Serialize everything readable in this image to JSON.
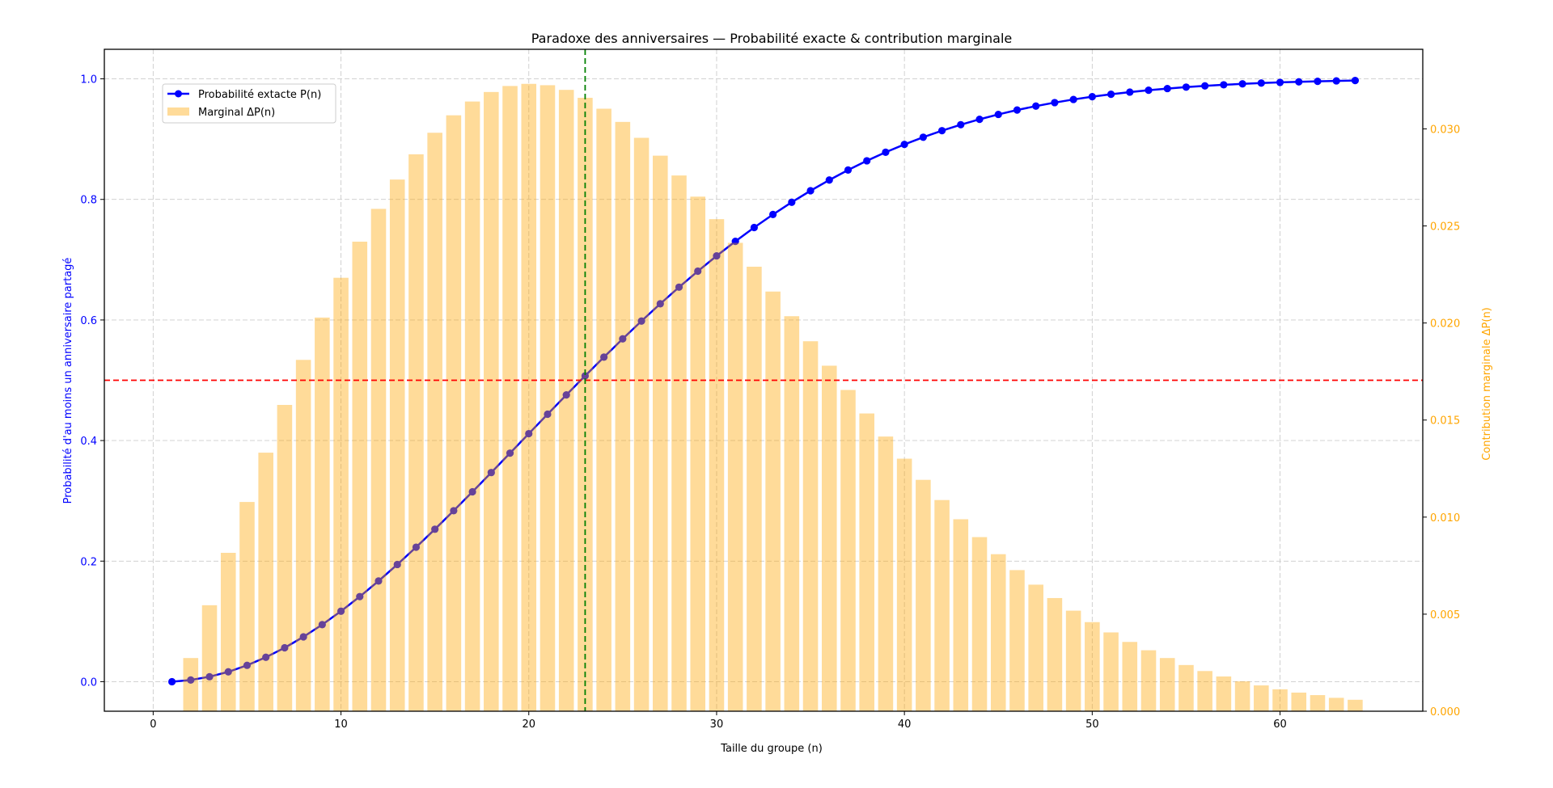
{
  "chart_data": {
    "type": "bar+line",
    "title": "Paradoxe des anniversaires — Probabilité exacte & contribution marginale",
    "xlabel": "Taille du groupe (n)",
    "ylabel": "Probabilité d'au moins un anniversaire partagé",
    "ylabel_right": "Contribution marginale ΔP(n)",
    "xlim": [
      -2.6,
      67.6
    ],
    "ylim": [
      -0.049,
      1.049
    ],
    "ylim_right": [
      0.0,
      0.0341
    ],
    "x_ticks": [
      0,
      10,
      20,
      30,
      40,
      50,
      60
    ],
    "y_ticks": [
      0.0,
      0.2,
      0.4,
      0.6,
      0.8,
      1.0
    ],
    "y_tick_labels": [
      "0.0",
      "0.2",
      "0.4",
      "0.6",
      "0.8",
      "1.0"
    ],
    "y_right_ticks": [
      0.0,
      0.005,
      0.01,
      0.015,
      0.02,
      0.025,
      0.03
    ],
    "y_right_tick_labels": [
      "0.000",
      "0.005",
      "0.010",
      "0.015",
      "0.020",
      "0.025",
      "0.030"
    ],
    "grid": true,
    "legend_position": "upper left",
    "colors": {
      "line": "#0000ff",
      "bars": "#ffa500",
      "bar_alpha": 0.4,
      "threshold_line": "#ff0000",
      "vertical_line": "#008000",
      "left_axis": "#0000ff",
      "right_axis": "#ffa500",
      "grid": "#cccccc"
    },
    "annotations": {
      "horizontal_line": {
        "y": 0.5,
        "style": "dashed",
        "color": "#ff0000"
      },
      "vertical_line": {
        "x": 23,
        "style": "dashed",
        "color": "#008000"
      }
    },
    "series": [
      {
        "name": "Probabilité extacte P(n)",
        "type": "line",
        "axis": "left",
        "x": [
          1,
          2,
          3,
          4,
          5,
          6,
          7,
          8,
          9,
          10,
          11,
          12,
          13,
          14,
          15,
          16,
          17,
          18,
          19,
          20,
          21,
          22,
          23,
          24,
          25,
          26,
          27,
          28,
          29,
          30,
          31,
          32,
          33,
          34,
          35,
          36,
          37,
          38,
          39,
          40,
          41,
          42,
          43,
          44,
          45,
          46,
          47,
          48,
          49,
          50,
          51,
          52,
          53,
          54,
          55,
          56,
          57,
          58,
          59,
          60,
          61,
          62,
          63,
          64
        ],
        "values": [
          0.0,
          0.00274,
          0.0082,
          0.01636,
          0.02714,
          0.04046,
          0.05624,
          0.07434,
          0.09462,
          0.11695,
          0.14114,
          0.16702,
          0.19441,
          0.2231,
          0.2529,
          0.2836,
          0.31501,
          0.34691,
          0.37912,
          0.41144,
          0.44369,
          0.4757,
          0.5073,
          0.53834,
          0.5687,
          0.59824,
          0.62686,
          0.65446,
          0.68097,
          0.70632,
          0.73045,
          0.75335,
          0.77497,
          0.79532,
          0.81438,
          0.83218,
          0.84873,
          0.86407,
          0.87822,
          0.89123,
          0.90315,
          0.91403,
          0.92392,
          0.93289,
          0.94098,
          0.94825,
          0.95477,
          0.9606,
          0.96578,
          0.97037,
          0.97443,
          0.978,
          0.98114,
          0.98388,
          0.98626,
          0.98833,
          0.99012,
          0.99166,
          0.99299,
          0.99412,
          0.99508,
          0.99591,
          0.9966,
          0.99719
        ]
      },
      {
        "name": "Marginal ΔP(n)",
        "type": "bar",
        "axis": "right",
        "x": [
          2,
          3,
          4,
          5,
          6,
          7,
          8,
          9,
          10,
          11,
          12,
          13,
          14,
          15,
          16,
          17,
          18,
          19,
          20,
          21,
          22,
          23,
          24,
          25,
          26,
          27,
          28,
          29,
          30,
          31,
          32,
          33,
          34,
          35,
          36,
          37,
          38,
          39,
          40,
          41,
          42,
          43,
          44,
          45,
          46,
          47,
          48,
          49,
          50,
          51,
          52,
          53,
          54,
          55,
          56,
          57,
          58,
          59,
          60,
          61,
          62,
          63,
          64
        ],
        "values": [
          0.00274,
          0.00546,
          0.00816,
          0.01078,
          0.01332,
          0.01578,
          0.0181,
          0.02028,
          0.02233,
          0.02419,
          0.02588,
          0.02739,
          0.02869,
          0.0298,
          0.0307,
          0.03141,
          0.0319,
          0.03221,
          0.03232,
          0.03225,
          0.03201,
          0.0316,
          0.03104,
          0.03036,
          0.02954,
          0.02862,
          0.0276,
          0.02651,
          0.02535,
          0.02413,
          0.0229,
          0.02162,
          0.02035,
          0.01906,
          0.0178,
          0.01655,
          0.01534,
          0.01415,
          0.01301,
          0.01192,
          0.01088,
          0.00989,
          0.00897,
          0.00809,
          0.00727,
          0.00652,
          0.00583,
          0.00518,
          0.00459,
          0.00406,
          0.00357,
          0.00314,
          0.00274,
          0.00238,
          0.00207,
          0.00179,
          0.00154,
          0.00133,
          0.00113,
          0.00096,
          0.00083,
          0.00069,
          0.00059
        ]
      }
    ]
  }
}
